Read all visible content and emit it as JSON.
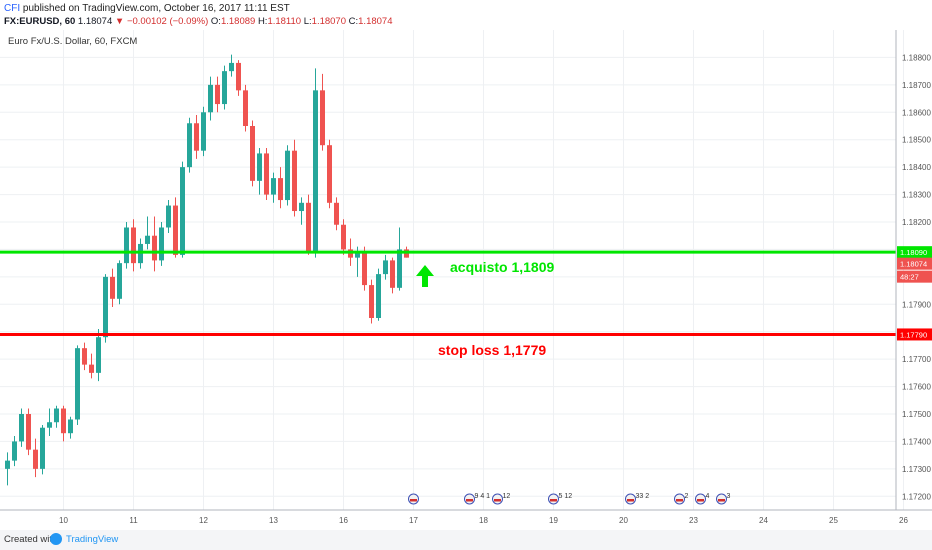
{
  "header": {
    "author": "CFI",
    "published_text": "published on TradingView.com, October 16, 2017 11:11 EST",
    "symbol": "FX:EURUSD, 60",
    "last": "1.18074",
    "change": "−0.00102 (−0.09%)",
    "open_label": "O:",
    "open": "1.18089",
    "high_label": "H:",
    "high": "1.18110",
    "low_label": "L:",
    "low": "1.18070",
    "close_label": "C:",
    "close": "1.18074"
  },
  "legend_title": "Euro Fx/U.S. Dollar, 60, FXCM",
  "footer": {
    "created_with": "Created with",
    "brand": "TradingView"
  },
  "chart_data": {
    "type": "candlestick",
    "title": "Euro Fx/U.S. Dollar, 60, FXCM",
    "xlabel": "",
    "ylabel": "",
    "ylim": [
      1.1715,
      1.189
    ],
    "y_ticks": [
      "1.18800",
      "1.18700",
      "1.18600",
      "1.18500",
      "1.18400",
      "1.18300",
      "1.18200",
      "1.18100",
      "1.18000",
      "1.17900",
      "1.17800",
      "1.17700",
      "1.17600",
      "1.17500",
      "1.17400",
      "1.17300",
      "1.17200"
    ],
    "y_tick_values": [
      1.188,
      1.187,
      1.186,
      1.185,
      1.184,
      1.183,
      1.182,
      1.181,
      1.18,
      1.179,
      1.178,
      1.177,
      1.176,
      1.175,
      1.174,
      1.173,
      1.172
    ],
    "x_ticks": [
      "10",
      "11",
      "12",
      "13",
      "16",
      "17",
      "18",
      "19",
      "20",
      "23",
      "24",
      "25",
      "26"
    ],
    "x_tick_index": [
      8,
      18,
      28,
      38,
      48,
      58,
      68,
      78,
      88,
      98,
      108,
      118,
      128
    ],
    "grid": true,
    "colors": {
      "up": "#26a69a",
      "down": "#ef5350",
      "buy_line": "#00e600",
      "stop_line": "#ff0000",
      "grid": "#eef0f3"
    },
    "candles": [
      {
        "o": 1.173,
        "h": 1.1736,
        "l": 1.1724,
        "c": 1.1733
      },
      {
        "o": 1.1733,
        "h": 1.1742,
        "l": 1.1731,
        "c": 1.174
      },
      {
        "o": 1.174,
        "h": 1.1752,
        "l": 1.1738,
        "c": 1.175
      },
      {
        "o": 1.175,
        "h": 1.1752,
        "l": 1.1735,
        "c": 1.1737
      },
      {
        "o": 1.1737,
        "h": 1.1741,
        "l": 1.1727,
        "c": 1.173
      },
      {
        "o": 1.173,
        "h": 1.1746,
        "l": 1.1728,
        "c": 1.1745
      },
      {
        "o": 1.1745,
        "h": 1.1752,
        "l": 1.1742,
        "c": 1.1747
      },
      {
        "o": 1.1747,
        "h": 1.1753,
        "l": 1.1745,
        "c": 1.1752
      },
      {
        "o": 1.1752,
        "h": 1.1753,
        "l": 1.174,
        "c": 1.1743
      },
      {
        "o": 1.1743,
        "h": 1.1749,
        "l": 1.1741,
        "c": 1.1748
      },
      {
        "o": 1.1748,
        "h": 1.1775,
        "l": 1.1746,
        "c": 1.1774
      },
      {
        "o": 1.1774,
        "h": 1.1776,
        "l": 1.1766,
        "c": 1.1768
      },
      {
        "o": 1.1768,
        "h": 1.1772,
        "l": 1.1763,
        "c": 1.1765
      },
      {
        "o": 1.1765,
        "h": 1.1781,
        "l": 1.1762,
        "c": 1.1778
      },
      {
        "o": 1.1778,
        "h": 1.1801,
        "l": 1.1776,
        "c": 1.18
      },
      {
        "o": 1.18,
        "h": 1.1803,
        "l": 1.1789,
        "c": 1.1792
      },
      {
        "o": 1.1792,
        "h": 1.1806,
        "l": 1.179,
        "c": 1.1805
      },
      {
        "o": 1.1805,
        "h": 1.182,
        "l": 1.1803,
        "c": 1.1818
      },
      {
        "o": 1.1818,
        "h": 1.1821,
        "l": 1.1802,
        "c": 1.1805
      },
      {
        "o": 1.1805,
        "h": 1.1814,
        "l": 1.1803,
        "c": 1.1812
      },
      {
        "o": 1.1812,
        "h": 1.1822,
        "l": 1.181,
        "c": 1.1815
      },
      {
        "o": 1.1815,
        "h": 1.1822,
        "l": 1.1802,
        "c": 1.1806
      },
      {
        "o": 1.1806,
        "h": 1.182,
        "l": 1.1804,
        "c": 1.1818
      },
      {
        "o": 1.1818,
        "h": 1.1828,
        "l": 1.1816,
        "c": 1.1826
      },
      {
        "o": 1.1826,
        "h": 1.1829,
        "l": 1.1807,
        "c": 1.1808
      },
      {
        "o": 1.1808,
        "h": 1.1842,
        "l": 1.1807,
        "c": 1.184
      },
      {
        "o": 1.184,
        "h": 1.1858,
        "l": 1.1838,
        "c": 1.1856
      },
      {
        "o": 1.1856,
        "h": 1.1859,
        "l": 1.1843,
        "c": 1.1846
      },
      {
        "o": 1.1846,
        "h": 1.1862,
        "l": 1.1844,
        "c": 1.186
      },
      {
        "o": 1.186,
        "h": 1.1873,
        "l": 1.1857,
        "c": 1.187
      },
      {
        "o": 1.187,
        "h": 1.1873,
        "l": 1.186,
        "c": 1.1863
      },
      {
        "o": 1.1863,
        "h": 1.1877,
        "l": 1.1861,
        "c": 1.1875
      },
      {
        "o": 1.1875,
        "h": 1.1881,
        "l": 1.1873,
        "c": 1.1878
      },
      {
        "o": 1.1878,
        "h": 1.1879,
        "l": 1.1866,
        "c": 1.1868
      },
      {
        "o": 1.1868,
        "h": 1.187,
        "l": 1.1853,
        "c": 1.1855
      },
      {
        "o": 1.1855,
        "h": 1.1857,
        "l": 1.1833,
        "c": 1.1835
      },
      {
        "o": 1.1835,
        "h": 1.1847,
        "l": 1.183,
        "c": 1.1845
      },
      {
        "o": 1.1845,
        "h": 1.1847,
        "l": 1.1828,
        "c": 1.183
      },
      {
        "o": 1.183,
        "h": 1.1838,
        "l": 1.1827,
        "c": 1.1836
      },
      {
        "o": 1.1836,
        "h": 1.184,
        "l": 1.1825,
        "c": 1.1828
      },
      {
        "o": 1.1828,
        "h": 1.1848,
        "l": 1.1826,
        "c": 1.1846
      },
      {
        "o": 1.1846,
        "h": 1.185,
        "l": 1.1822,
        "c": 1.1824
      },
      {
        "o": 1.1824,
        "h": 1.1829,
        "l": 1.1819,
        "c": 1.1827
      },
      {
        "o": 1.1827,
        "h": 1.183,
        "l": 1.1808,
        "c": 1.1809
      },
      {
        "o": 1.1809,
        "h": 1.1876,
        "l": 1.1807,
        "c": 1.1868
      },
      {
        "o": 1.1868,
        "h": 1.1874,
        "l": 1.1846,
        "c": 1.1848
      },
      {
        "o": 1.1848,
        "h": 1.185,
        "l": 1.1825,
        "c": 1.1827
      },
      {
        "o": 1.1827,
        "h": 1.1829,
        "l": 1.1817,
        "c": 1.1819
      },
      {
        "o": 1.1819,
        "h": 1.1821,
        "l": 1.1808,
        "c": 1.181
      },
      {
        "o": 1.181,
        "h": 1.1814,
        "l": 1.1804,
        "c": 1.1807
      },
      {
        "o": 1.1807,
        "h": 1.1811,
        "l": 1.18,
        "c": 1.1809
      },
      {
        "o": 1.1809,
        "h": 1.1811,
        "l": 1.1795,
        "c": 1.1797
      },
      {
        "o": 1.1797,
        "h": 1.1799,
        "l": 1.1783,
        "c": 1.1785
      },
      {
        "o": 1.1785,
        "h": 1.1803,
        "l": 1.1784,
        "c": 1.1801
      },
      {
        "o": 1.1801,
        "h": 1.1808,
        "l": 1.1799,
        "c": 1.1806
      },
      {
        "o": 1.1806,
        "h": 1.1807,
        "l": 1.1794,
        "c": 1.1796
      },
      {
        "o": 1.1796,
        "h": 1.1818,
        "l": 1.1795,
        "c": 1.181
      },
      {
        "o": 1.181,
        "h": 1.1811,
        "l": 1.1807,
        "c": 1.1807
      }
    ],
    "horizontal_lines": [
      {
        "name": "acquisto",
        "value": 1.1809,
        "color": "#00e600",
        "label": "acquisto 1,1809",
        "axis_label": "1.18090"
      },
      {
        "name": "stop-loss",
        "value": 1.1779,
        "color": "#ff0000",
        "label": "stop loss 1,1779",
        "axis_label": "1.17790"
      }
    ],
    "price_labels": {
      "last": "1.18074",
      "countdown": "48:27"
    },
    "event_markers": [
      {
        "index": 58,
        "text": ""
      },
      {
        "index": 66,
        "text": "9 4 1"
      },
      {
        "index": 70,
        "text": "12"
      },
      {
        "index": 78,
        "text": "5 12"
      },
      {
        "index": 89,
        "text": "33 2"
      },
      {
        "index": 96,
        "text": "2"
      },
      {
        "index": 99,
        "text": "4"
      },
      {
        "index": 102,
        "text": "3"
      }
    ]
  }
}
